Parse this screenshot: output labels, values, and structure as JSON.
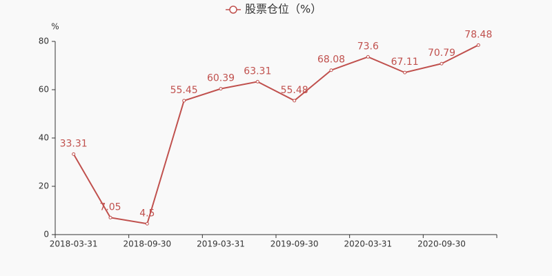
{
  "chart_data": {
    "type": "line",
    "y_unit": "%",
    "categories": [
      "2018-03-31",
      null,
      "2018-09-30",
      null,
      "2019-03-31",
      null,
      "2019-09-30",
      null,
      "2020-03-31",
      null,
      "2020-09-30",
      null
    ],
    "series": [
      {
        "name": "股票仓位（%）",
        "color": "#c0504d",
        "values": [
          33.31,
          7.05,
          4.5,
          55.45,
          60.39,
          63.31,
          55.48,
          68.08,
          73.6,
          67.11,
          70.79,
          78.48
        ]
      }
    ],
    "ylim": [
      0,
      80
    ],
    "yticks": [
      0,
      20,
      40,
      60,
      80
    ],
    "grid": false,
    "legend": "top"
  }
}
